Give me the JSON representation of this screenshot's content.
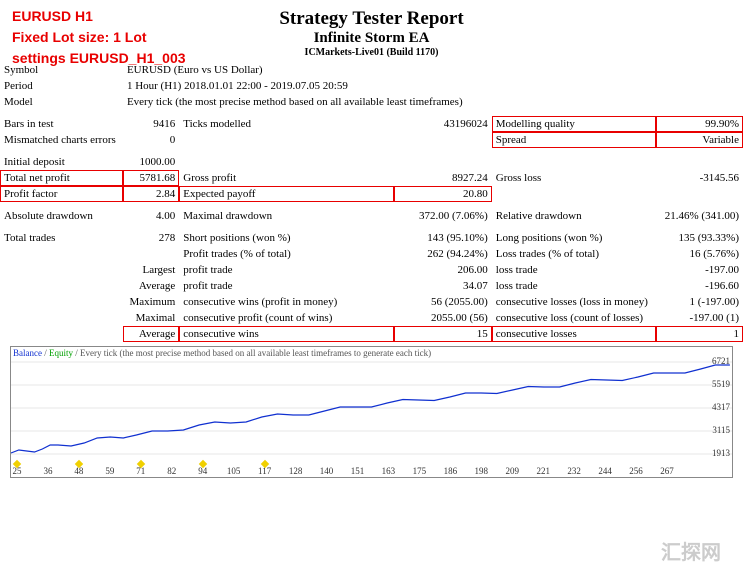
{
  "annotations": {
    "line1": "EURUSD H1",
    "line2": "Fixed Lot size: 1 Lot",
    "line3": "settings EURUSD_H1_003",
    "color": "#e80000"
  },
  "header": {
    "title": "Strategy Tester Report",
    "subtitle": "Infinite Storm EA",
    "server": "ICMarkets-Live01 (Build 1170)"
  },
  "info": {
    "symbol_lbl": "Symbol",
    "symbol_val": "EURUSD (Euro vs US Dollar)",
    "period_lbl": "Period",
    "period_val": "1 Hour (H1) 2018.01.01 22:00 - 2019.07.05 20:59",
    "model_lbl": "Model",
    "model_val": "Every tick (the most precise method based on all available least timeframes)"
  },
  "r1": {
    "c1l": "Bars in test",
    "c1v": "9416",
    "c2l": "Ticks modelled",
    "c2v": "43196024",
    "c3l": "Modelling quality",
    "c3v": "99.90%"
  },
  "r2": {
    "c1l": "Mismatched charts errors",
    "c1v": "0",
    "c2l": "",
    "c2v": "",
    "c3l": "Spread",
    "c3v": "Variable"
  },
  "r3": {
    "c1l": "Initial deposit",
    "c1v": "1000.00",
    "c2l": "",
    "c2v": "",
    "c3l": "",
    "c3v": ""
  },
  "r4": {
    "c1l": "Total net profit",
    "c1v": "5781.68",
    "c2l": "Gross profit",
    "c2v": "8927.24",
    "c3l": "Gross loss",
    "c3v": "-3145.56"
  },
  "r5": {
    "c1l": "Profit factor",
    "c1v": "2.84",
    "c2l": "Expected payoff",
    "c2v": "20.80",
    "c3l": "",
    "c3v": ""
  },
  "r6": {
    "c1l": "Absolute drawdown",
    "c1v": "4.00",
    "c2l": "Maximal drawdown",
    "c2v": "372.00 (7.06%)",
    "c3l": "Relative drawdown",
    "c3v": "21.46% (341.00)"
  },
  "r7": {
    "c1l": "Total trades",
    "c1v": "278",
    "c2l": "Short positions (won %)",
    "c2v": "143 (95.10%)",
    "c3l": "Long positions (won %)",
    "c3v": "135 (93.33%)"
  },
  "r8": {
    "c1l": "",
    "c1v": "",
    "c2l": "Profit trades (% of total)",
    "c2v": "262 (94.24%)",
    "c3l": "Loss trades (% of total)",
    "c3v": "16 (5.76%)"
  },
  "r9": {
    "c1l": "",
    "c1v": "Largest",
    "c2l": "profit trade",
    "c2v": "206.00",
    "c3l": "loss trade",
    "c3v": "-197.00"
  },
  "r10": {
    "c1l": "",
    "c1v": "Average",
    "c2l": "profit trade",
    "c2v": "34.07",
    "c3l": "loss trade",
    "c3v": "-196.60"
  },
  "r11": {
    "c1l": "",
    "c1v": "Maximum",
    "c2l": "consecutive wins (profit in money)",
    "c2v": "56 (2055.00)",
    "c3l": "consecutive losses (loss in money)",
    "c3v": "1 (-197.00)"
  },
  "r12": {
    "c1l": "",
    "c1v": "Maximal",
    "c2l": "consecutive profit (count of wins)",
    "c2v": "2055.00 (56)",
    "c3l": "consecutive loss (count of losses)",
    "c3v": "-197.00 (1)"
  },
  "r13": {
    "c1l": "",
    "c1v": "Average",
    "c2l": "consecutive wins",
    "c2v": "15",
    "c3l": "consecutive losses",
    "c3v": "1"
  },
  "chart": {
    "legend_balance": "Balance",
    "legend_equity": "Equity",
    "legend_tail": " / Every tick (the most precise method based on all available least timeframes to generate each tick)",
    "y_ticks": [
      "6721",
      "5519",
      "4317",
      "3115",
      "1913"
    ],
    "x_ticks": [
      "25",
      "36",
      "48",
      "59",
      "71",
      "82",
      "94",
      "105",
      "117",
      "128",
      "140",
      "151",
      "163",
      "175",
      "186",
      "198",
      "209",
      "221",
      "232",
      "244",
      "256",
      "267"
    ],
    "x_markers_idx": [
      0,
      2,
      4,
      6,
      8
    ],
    "line_color": "#1030d0",
    "grid_color": "#e7e7e7",
    "points": [
      [
        0,
        96
      ],
      [
        15,
        94
      ],
      [
        30,
        92
      ],
      [
        45,
        88
      ],
      [
        70,
        86
      ],
      [
        95,
        80
      ],
      [
        120,
        78
      ],
      [
        150,
        74
      ],
      [
        180,
        68
      ],
      [
        210,
        66
      ],
      [
        240,
        60
      ],
      [
        270,
        58
      ],
      [
        300,
        54
      ],
      [
        330,
        50
      ],
      [
        360,
        46
      ],
      [
        390,
        43
      ],
      [
        420,
        40
      ],
      [
        450,
        36
      ],
      [
        480,
        33
      ],
      [
        510,
        30
      ],
      [
        540,
        26
      ],
      [
        570,
        23
      ],
      [
        600,
        20
      ],
      [
        630,
        16
      ],
      [
        660,
        12
      ],
      [
        688,
        8
      ]
    ]
  },
  "watermark": "汇探网"
}
